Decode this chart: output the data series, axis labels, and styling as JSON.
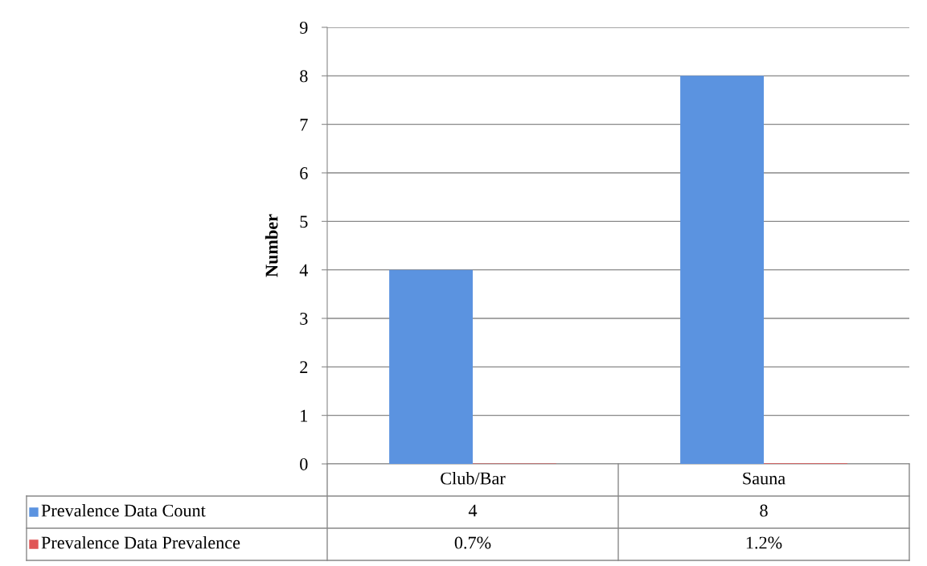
{
  "chart_data": {
    "type": "bar",
    "ylabel": "Number",
    "categories": [
      "Club/Bar",
      "Sauna"
    ],
    "series": [
      {
        "name": "Prevalence Data Count",
        "color": "#5b93e0",
        "values": [
          4,
          8
        ],
        "value_labels": [
          "4",
          "8"
        ]
      },
      {
        "name": "Prevalence Data Prevalence",
        "color": "#e05555",
        "values": [
          0.007,
          0.012
        ],
        "value_labels": [
          "0.7%",
          "1.2%"
        ]
      }
    ],
    "ylim": [
      0,
      9
    ],
    "yticks": [
      0,
      1,
      2,
      3,
      4,
      5,
      6,
      7,
      8,
      9
    ],
    "grid": "y",
    "legend": "bottom"
  }
}
